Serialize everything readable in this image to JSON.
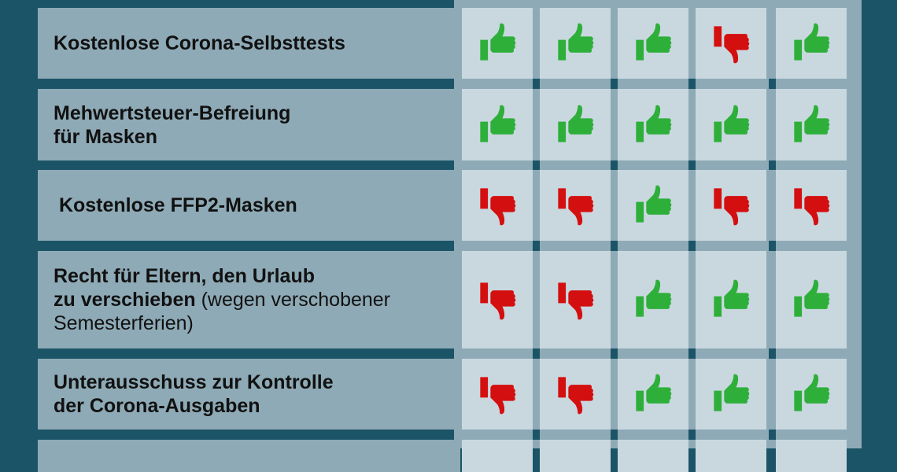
{
  "colors": {
    "background": "#1c5467",
    "label_bg": "#8eaab6",
    "cell_bg": "#c9d8df",
    "thumbs_up": "#2eaf3a",
    "thumbs_down": "#d40f0f"
  },
  "rows": [
    {
      "bold": "Kostenlose Corona-Selbsttests",
      "normal": "",
      "votes": [
        "up",
        "up",
        "up",
        "down",
        "up"
      ]
    },
    {
      "bold": "Mehwertsteuer-Befreiung\nfür Masken",
      "normal": "",
      "votes": [
        "up",
        "up",
        "up",
        "up",
        "up"
      ]
    },
    {
      "bold": " Kostenlose FFP2-Masken",
      "normal": "",
      "votes": [
        "down",
        "down",
        "up",
        "down",
        "down"
      ]
    },
    {
      "bold": "Recht für Eltern, den Urlaub\nzu verschieben",
      "normal": " (wegen verschobener\nSemesterferien)",
      "votes": [
        "down",
        "down",
        "up",
        "up",
        "up"
      ]
    },
    {
      "bold": "Unterausschuss zur Kontrolle\nder Corona-Ausgaben",
      "normal": "",
      "votes": [
        "down",
        "down",
        "up",
        "up",
        "up"
      ]
    },
    {
      "bold": "",
      "normal": "",
      "votes": []
    }
  ]
}
